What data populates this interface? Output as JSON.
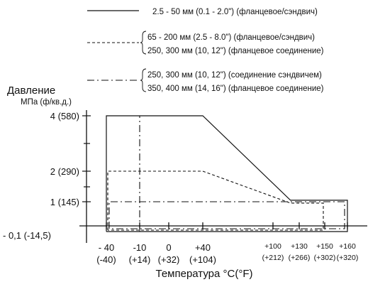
{
  "chart_data": {
    "type": "line",
    "title": "",
    "ylabel": "Давление",
    "ylabel_units": "МПа (ф/кв.д.)",
    "xlabel": "Температура °C(°F)",
    "xlim": [
      -40,
      160
    ],
    "ylim": [
      -0.1,
      4
    ],
    "legend_position": "top",
    "legend": [
      {
        "style": "solid",
        "lines": [
          "2.5 - 50 мм (0.1 - 2.0\") (фланцевое/сэндвич)"
        ]
      },
      {
        "style": "dashed",
        "lines": [
          "65 - 200 мм (2.5 - 8.0\") (фланцевое/сэндвич)",
          "250, 300 мм (10, 12\") (фланцевое соединение)"
        ]
      },
      {
        "style": "dashdot",
        "lines": [
          "250, 300 мм (10, 12\") (соединение сэндвичем)",
          "350, 400 мм (14, 16\") (фланцевое соединение)"
        ]
      }
    ],
    "y_ticks": [
      {
        "value": 4,
        "label": "4 (580)"
      },
      {
        "value": 2,
        "label": "2 (290)"
      },
      {
        "value": 1,
        "label": "1 (145)"
      },
      {
        "value": -0.1,
        "label": "- 0,1 (-14,5)"
      }
    ],
    "x_ticks": [
      {
        "value": -40,
        "label": "- 40",
        "sub": "(-40)",
        "small": false
      },
      {
        "value": -10,
        "label": "-10",
        "sub": "(+14)",
        "small": false
      },
      {
        "value": 0,
        "label": "0",
        "sub": "(+32)",
        "small": false
      },
      {
        "value": 40,
        "label": "+40",
        "sub": "(+104)",
        "small": false
      },
      {
        "value": 100,
        "label": "+100",
        "sub": "(+212)",
        "small": true
      },
      {
        "value": 130,
        "label": "+130",
        "sub": "(+266)",
        "small": true
      },
      {
        "value": 150,
        "label": "+150",
        "sub": "(+302)",
        "small": true
      },
      {
        "value": 160,
        "label": "+160",
        "sub": "(+320)",
        "small": true
      }
    ],
    "series": [
      {
        "style": "solid",
        "points": [
          [
            -40,
            -0.1
          ],
          [
            -40,
            4
          ],
          [
            40,
            4
          ],
          [
            120,
            1.05
          ],
          [
            160,
            1.05
          ],
          [
            160,
            -0.1
          ],
          [
            -40,
            -0.1
          ]
        ]
      },
      {
        "style": "dashed",
        "points": [
          [
            -40,
            -0.1
          ],
          [
            -40,
            2
          ],
          [
            40,
            2
          ],
          [
            120,
            0.95
          ],
          [
            150,
            0.95
          ],
          [
            150,
            -0.1
          ],
          [
            -40,
            -0.1
          ]
        ]
      },
      {
        "style": "dashdot",
        "points": [
          [
            -40,
            -0.1
          ],
          [
            -40,
            1
          ],
          [
            160,
            1
          ],
          [
            160,
            -0.1
          ],
          [
            -40,
            -0.1
          ]
        ]
      },
      {
        "style": "dashdot",
        "points": [
          [
            -10,
            -0.1
          ],
          [
            -10,
            4
          ]
        ]
      }
    ]
  }
}
